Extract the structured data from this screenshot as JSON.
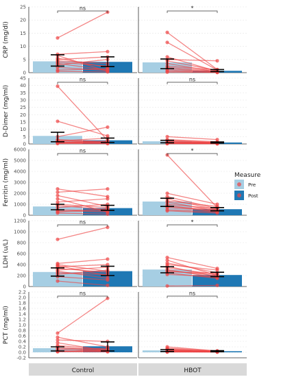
{
  "legend": {
    "title": "Measure",
    "items": [
      {
        "label": "Pre",
        "color": "#a6cee3"
      },
      {
        "label": "Post",
        "color": "#1f78b4"
      }
    ]
  },
  "colors": {
    "pre_bar": "#a6cee3",
    "post_bar": "#1f78b4",
    "lines": "#ee4444",
    "grid": "#e6e6e6",
    "strip": "#d9d9d9"
  },
  "columns": [
    "Control",
    "HBOT"
  ],
  "chart_data": {
    "type": "bar",
    "categories": [
      "Pre",
      "Post"
    ],
    "panels": [
      {
        "ylabel": "CRP (mg/dl)",
        "ylim": [
          0,
          25
        ],
        "ticks": [
          "0",
          "5",
          "10",
          "15",
          "20",
          "25"
        ],
        "groups": [
          {
            "column": "Control",
            "significance": "ns",
            "pre": {
              "mean": 4.3,
              "err": [
                2.5,
                6.8
              ]
            },
            "post": {
              "mean": 4.1,
              "err": [
                2.3,
                6.0
              ]
            },
            "pairs": [
              [
                13.2,
                23.0
              ],
              [
                7.0,
                8.0
              ],
              [
                6.5,
                0.5
              ],
              [
                5.5,
                2.0
              ],
              [
                5.0,
                6.0
              ],
              [
                4.5,
                3.5
              ],
              [
                4.0,
                2.5
              ],
              [
                3.5,
                1.0
              ],
              [
                3.0,
                5.0
              ],
              [
                2.0,
                0.8
              ],
              [
                1.0,
                1.5
              ],
              [
                0.5,
                0.3
              ]
            ]
          },
          {
            "column": "HBOT",
            "significance": "*",
            "pre": {
              "mean": 3.9,
              "err": [
                1.5,
                5.2
              ]
            },
            "post": {
              "mean": 0.7,
              "err": [
                0.4,
                1.2
              ]
            },
            "pairs": [
              [
                15.3,
                1.2
              ],
              [
                11.5,
                1.0
              ],
              [
                6.0,
                0.5
              ],
              [
                5.0,
                4.5
              ],
              [
                4.5,
                0.8
              ],
              [
                3.5,
                0.3
              ],
              [
                2.5,
                1.0
              ],
              [
                2.0,
                0.5
              ],
              [
                1.5,
                0.3
              ],
              [
                1.0,
                0.2
              ],
              [
                0.5,
                0.1
              ],
              [
                0.2,
                0.1
              ]
            ]
          }
        ]
      },
      {
        "ylabel": "D-Dimer (mg/ml)",
        "ylim": [
          0,
          45
        ],
        "ticks": [
          "0",
          "5",
          "10",
          "15",
          "20",
          "25",
          "30",
          "35",
          "40",
          "45"
        ],
        "groups": [
          {
            "column": "Control",
            "significance": "ns",
            "pre": {
              "mean": 5.5,
              "err": [
                1.5,
                8.0
              ]
            },
            "post": {
              "mean": 2.5,
              "err": [
                1.0,
                4.0
              ]
            },
            "pairs": [
              [
                39.5,
                2.5
              ],
              [
                15.5,
                5.5
              ],
              [
                5.0,
                11.5
              ],
              [
                3.0,
                1.5
              ],
              [
                2.5,
                1.0
              ],
              [
                2.0,
                4.0
              ],
              [
                1.5,
                0.8
              ],
              [
                1.2,
                1.0
              ],
              [
                1.0,
                2.0
              ],
              [
                0.8,
                0.5
              ],
              [
                0.5,
                0.6
              ],
              [
                0.3,
                0.2
              ]
            ]
          },
          {
            "column": "HBOT",
            "significance": "ns",
            "pre": {
              "mean": 1.8,
              "err": [
                0.8,
                2.5
              ]
            },
            "post": {
              "mean": 1.0,
              "err": [
                0.6,
                1.4
              ]
            },
            "pairs": [
              [
                5.0,
                3.0
              ],
              [
                3.0,
                1.5
              ],
              [
                2.5,
                1.0
              ],
              [
                2.0,
                0.8
              ],
              [
                1.5,
                0.5
              ],
              [
                1.2,
                1.0
              ],
              [
                1.0,
                0.6
              ],
              [
                0.8,
                0.4
              ],
              [
                0.5,
                0.3
              ],
              [
                0.4,
                0.2
              ],
              [
                0.3,
                0.2
              ],
              [
                0.2,
                0.1
              ]
            ]
          }
        ]
      },
      {
        "ylabel": "Ferritin (mg/ml)",
        "ylim": [
          0,
          6000
        ],
        "ticks": [
          "0",
          "1000",
          "2000",
          "3000",
          "4000",
          "5000",
          "6000"
        ],
        "groups": [
          {
            "column": "Control",
            "significance": "ns",
            "pre": {
              "mean": 800,
              "err": [
                500,
                1000
              ]
            },
            "post": {
              "mean": 650,
              "err": [
                450,
                900
              ]
            },
            "pairs": [
              [
                2400,
                1700
              ],
              [
                2100,
                2400
              ],
              [
                1800,
                800
              ],
              [
                1500,
                300
              ],
              [
                1200,
                1500
              ],
              [
                1000,
                700
              ],
              [
                900,
                500
              ],
              [
                700,
                1000
              ],
              [
                500,
                400
              ],
              [
                400,
                300
              ],
              [
                300,
                600
              ],
              [
                200,
                100
              ]
            ]
          },
          {
            "column": "HBOT",
            "significance": "*",
            "pre": {
              "mean": 1250,
              "err": [
                800,
                1550
              ]
            },
            "post": {
              "mean": 550,
              "err": [
                400,
                700
              ]
            },
            "pairs": [
              [
                5500,
                700
              ],
              [
                2000,
                1000
              ],
              [
                1700,
                600
              ],
              [
                1500,
                500
              ],
              [
                1300,
                800
              ],
              [
                1200,
                400
              ],
              [
                1000,
                600
              ],
              [
                900,
                300
              ],
              [
                800,
                500
              ],
              [
                700,
                400
              ],
              [
                500,
                300
              ],
              [
                400,
                200
              ]
            ]
          }
        ]
      },
      {
        "ylabel": "LDH (u/L)",
        "ylim": [
          0,
          1200
        ],
        "ticks": [
          "0",
          "200",
          "400",
          "600",
          "800",
          "1000",
          "1200"
        ],
        "groups": [
          {
            "column": "Control",
            "significance": "ns",
            "pre": {
              "mean": 265,
              "err": [
                190,
                340
              ]
            },
            "post": {
              "mean": 280,
              "err": [
                200,
                370
              ]
            },
            "pairs": [
              [
                860,
                1080
              ],
              [
                420,
                500
              ],
              [
                400,
                280
              ],
              [
                380,
                200
              ],
              [
                360,
                400
              ],
              [
                330,
                260
              ],
              [
                300,
                350
              ],
              [
                280,
                150
              ],
              [
                250,
                220
              ],
              [
                220,
                300
              ],
              [
                180,
                120
              ],
              [
                100,
                20
              ]
            ]
          },
          {
            "column": "HBOT",
            "significance": "*",
            "pre": {
              "mean": 310,
              "err": [
                250,
                360
              ]
            },
            "post": {
              "mean": 210,
              "err": [
                180,
                260
              ]
            },
            "pairs": [
              [
                530,
                330
              ],
              [
                480,
                200
              ],
              [
                430,
                250
              ],
              [
                400,
                300
              ],
              [
                370,
                180
              ],
              [
                340,
                220
              ],
              [
                310,
                160
              ],
              [
                290,
                200
              ],
              [
                270,
                240
              ],
              [
                250,
                150
              ],
              [
                220,
                180
              ],
              [
                10,
                20
              ]
            ]
          }
        ]
      },
      {
        "ylabel": "PCT (mg/ml)",
        "ylim": [
          -0.2,
          2.2
        ],
        "ticks": [
          "-0.2",
          "0.0",
          "0.2",
          "0.4",
          "0.6",
          "0.8",
          "1.0",
          "1.2",
          "1.4",
          "1.6",
          "1.8",
          "2.0",
          "2.2"
        ],
        "groups": [
          {
            "column": "Control",
            "significance": "ns",
            "pre": {
              "mean": 0.15,
              "err": [
                0.05,
                0.2
              ]
            },
            "post": {
              "mean": 0.22,
              "err": [
                0.05,
                0.38
              ]
            },
            "pairs": [
              [
                0.7,
                1.97
              ],
              [
                0.55,
                0.2
              ],
              [
                0.45,
                0.4
              ],
              [
                0.35,
                0.05
              ],
              [
                0.25,
                0.1
              ],
              [
                0.2,
                0.05
              ],
              [
                0.15,
                0.05
              ],
              [
                0.1,
                0.15
              ],
              [
                0.05,
                0.05
              ],
              [
                0.05,
                0.03
              ],
              [
                0.03,
                0.1
              ],
              [
                0.02,
                0.02
              ]
            ]
          },
          {
            "column": "HBOT",
            "significance": "ns",
            "pre": {
              "mean": 0.07,
              "err": [
                0.03,
                0.1
              ]
            },
            "post": {
              "mean": 0.04,
              "err": [
                0.02,
                0.06
              ]
            },
            "pairs": [
              [
                0.2,
                0.05
              ],
              [
                0.15,
                0.05
              ],
              [
                0.12,
                0.03
              ],
              [
                0.1,
                0.04
              ],
              [
                0.08,
                0.03
              ],
              [
                0.07,
                0.02
              ],
              [
                0.05,
                0.03
              ],
              [
                0.04,
                0.02
              ],
              [
                0.03,
                0.02
              ],
              [
                0.02,
                0.01
              ],
              [
                0.02,
                0.02
              ],
              [
                0.01,
                0.01
              ]
            ]
          }
        ]
      }
    ]
  }
}
